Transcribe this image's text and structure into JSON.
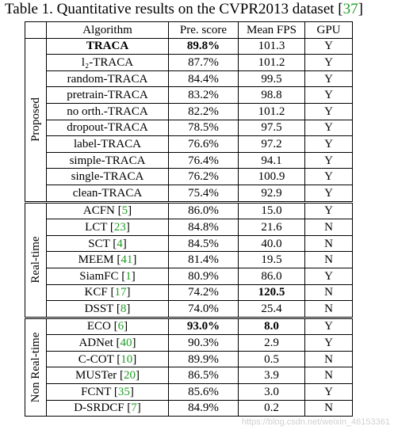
{
  "caption": {
    "text": "Table 1. Quantitative results on the CVPR2013 dataset [",
    "ref": "37",
    "close": "]"
  },
  "headers": [
    "Algorithm",
    "Pre. score",
    "Mean FPS",
    "GPU"
  ],
  "groups": [
    {
      "label": "Proposed",
      "rows": [
        {
          "algorithm": "TRACA",
          "ref": "",
          "score": "89.8%",
          "fps": "101.3",
          "gpu": "Y",
          "bold_alg": true,
          "bold_score": true
        },
        {
          "algorithm": "l₂-TRACA",
          "ref": "",
          "score": "87.7%",
          "fps": "101.2",
          "gpu": "Y"
        },
        {
          "algorithm": "random-TRACA",
          "ref": "",
          "score": "84.4%",
          "fps": "99.5",
          "gpu": "Y"
        },
        {
          "algorithm": "pretrain-TRACA",
          "ref": "",
          "score": "83.2%",
          "fps": "98.8",
          "gpu": "Y"
        },
        {
          "algorithm": "no orth.-TRACA",
          "ref": "",
          "score": "82.2%",
          "fps": "101.2",
          "gpu": "Y"
        },
        {
          "algorithm": "dropout-TRACA",
          "ref": "",
          "score": "78.5%",
          "fps": "97.5",
          "gpu": "Y"
        },
        {
          "algorithm": "label-TRACA",
          "ref": "",
          "score": "76.6%",
          "fps": "97.2",
          "gpu": "Y"
        },
        {
          "algorithm": "simple-TRACA",
          "ref": "",
          "score": "76.4%",
          "fps": "94.1",
          "gpu": "Y"
        },
        {
          "algorithm": "single-TRACA",
          "ref": "",
          "score": "76.2%",
          "fps": "100.9",
          "gpu": "Y"
        },
        {
          "algorithm": "clean-TRACA",
          "ref": "",
          "score": "75.4%",
          "fps": "92.9",
          "gpu": "Y"
        }
      ]
    },
    {
      "label": "Real-time",
      "rows": [
        {
          "algorithm": "ACFN",
          "ref": "5",
          "score": "86.0%",
          "fps": "15.0",
          "gpu": "Y"
        },
        {
          "algorithm": "LCT",
          "ref": "23",
          "score": "84.8%",
          "fps": "21.6",
          "gpu": "N"
        },
        {
          "algorithm": "SCT",
          "ref": "4",
          "score": "84.5%",
          "fps": "40.0",
          "gpu": "N"
        },
        {
          "algorithm": "MEEM",
          "ref": "41",
          "score": "81.4%",
          "fps": "19.5",
          "gpu": "N"
        },
        {
          "algorithm": "SiamFC",
          "ref": "1",
          "score": "80.9%",
          "fps": "86.0",
          "gpu": "Y"
        },
        {
          "algorithm": "KCF",
          "ref": "17",
          "score": "74.2%",
          "fps": "120.5",
          "gpu": "N",
          "bold_fps": true
        },
        {
          "algorithm": "DSST",
          "ref": "8",
          "score": "74.0%",
          "fps": "25.4",
          "gpu": "N"
        }
      ]
    },
    {
      "label": "Non Real-time",
      "rows": [
        {
          "algorithm": "ECO",
          "ref": "6",
          "score": "93.0%",
          "fps": "8.0",
          "gpu": "Y",
          "bold_score": true,
          "bold_fps": true
        },
        {
          "algorithm": "ADNet",
          "ref": "40",
          "score": "90.3%",
          "fps": "2.9",
          "gpu": "Y"
        },
        {
          "algorithm": "C-COT",
          "ref": "10",
          "score": "89.9%",
          "fps": "0.5",
          "gpu": "N"
        },
        {
          "algorithm": "MUSTer",
          "ref": "20",
          "score": "86.5%",
          "fps": "3.9",
          "gpu": "N"
        },
        {
          "algorithm": "FCNT",
          "ref": "35",
          "score": "85.6%",
          "fps": "3.0",
          "gpu": "Y"
        },
        {
          "algorithm": "D-SRDCF",
          "ref": "7",
          "score": "84.9%",
          "fps": "0.2",
          "gpu": "N"
        }
      ]
    }
  ],
  "watermark": "https://blog.csdn.net/weixin_46153361"
}
